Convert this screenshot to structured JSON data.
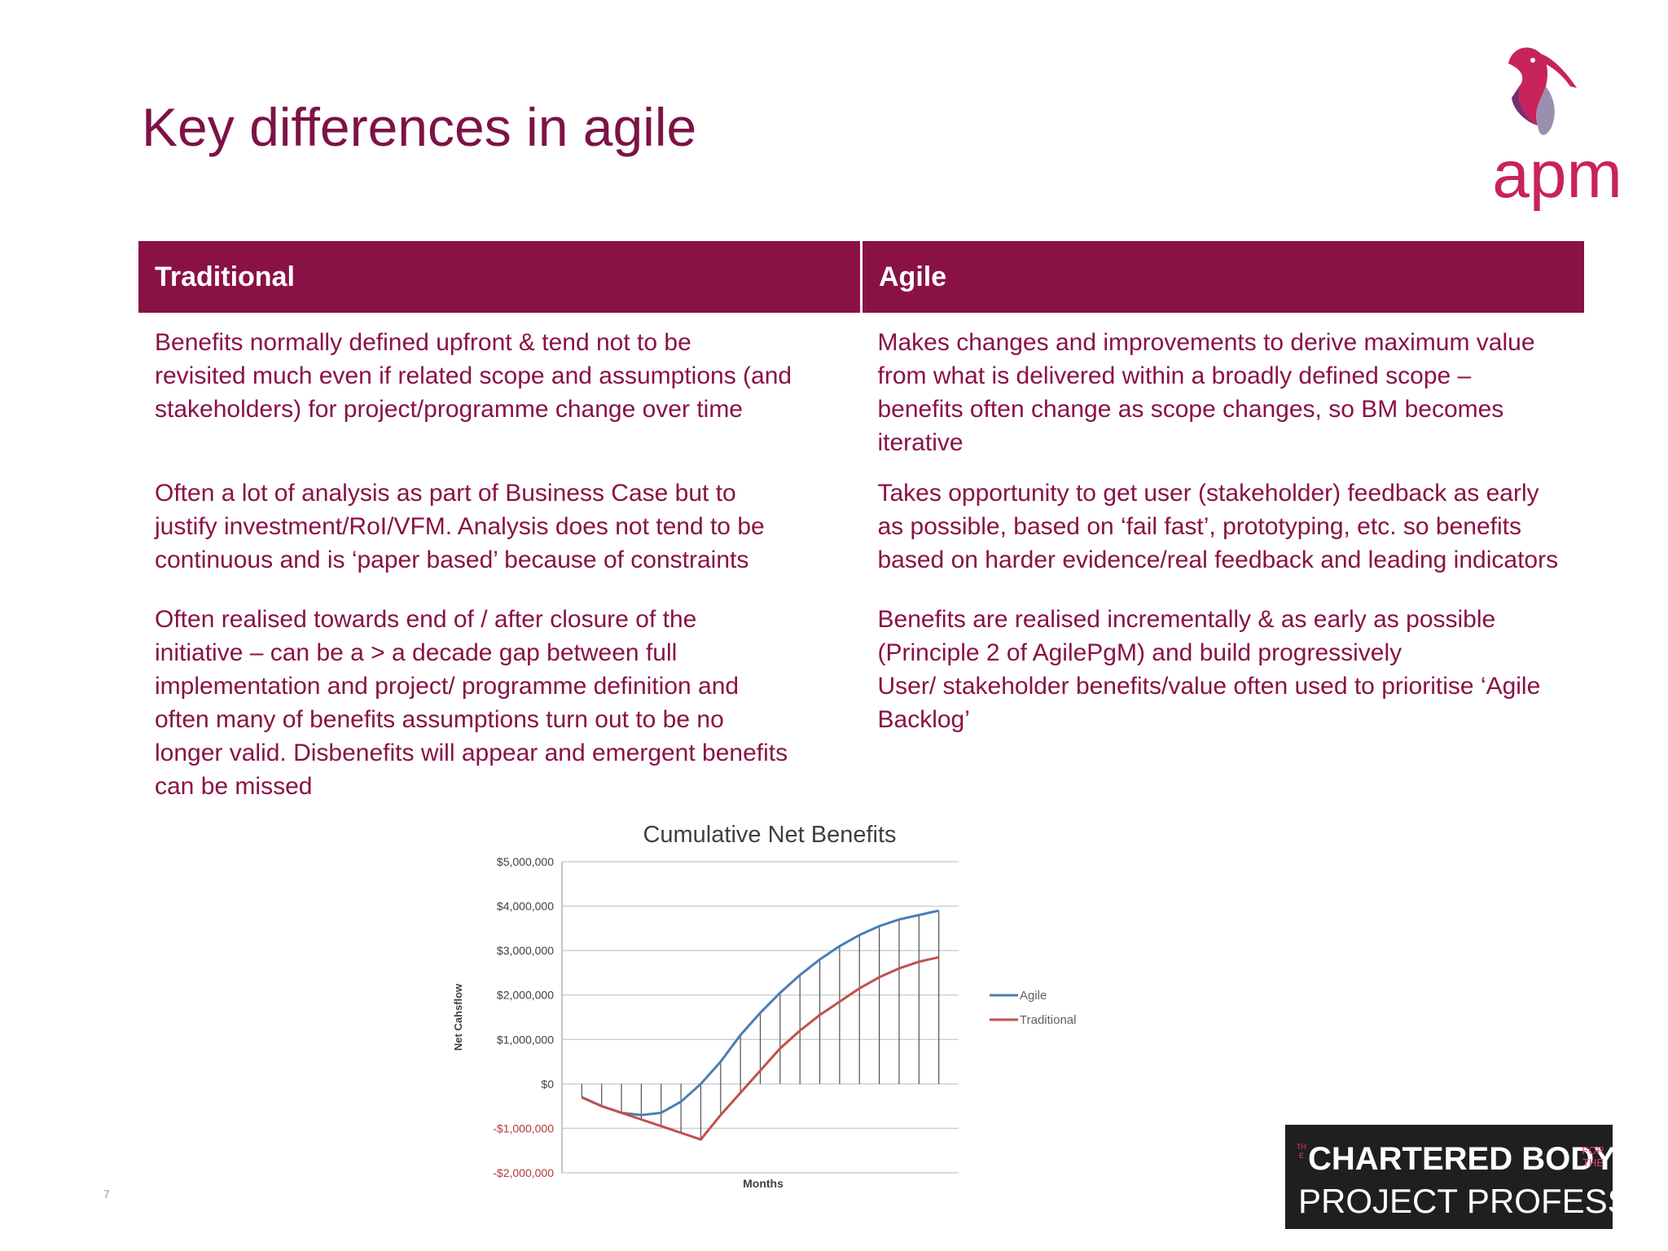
{
  "slide": {
    "title": "Key differences in agile",
    "page_number": "7"
  },
  "logo": {
    "text": "apm",
    "colors": {
      "magenta": "#c8235a",
      "purple": "#7b2d6e",
      "grey": "#9b8fb0"
    }
  },
  "table": {
    "headers": [
      "Traditional",
      "Agile"
    ],
    "header_color": "#8a1146",
    "text_color": "#8a1146",
    "rows": [
      {
        "traditional": "Benefits normally defined upfront & tend not to be\nrevisited much even if related scope and assumptions (and\nstakeholders) for project/programme change over time",
        "agile": "Makes changes and improvements to derive maximum value\nfrom what is delivered within a broadly defined scope –\nbenefits often change as scope changes, so BM becomes\niterative"
      },
      {
        "traditional": "Often a lot of analysis as part of Business Case but to\njustify investment/RoI/VFM. Analysis does not tend to be\ncontinuous and is ‘paper based’ because of constraints",
        "agile": "Takes opportunity to get user (stakeholder) feedback as early\nas possible, based on ‘fail fast’, prototyping, etc. so benefits\nbased on harder evidence/real feedback and leading indicators"
      },
      {
        "traditional": "Often realised towards end of / after closure of the\ninitiative – can be a > a decade gap between full\nimplementation and project/ programme definition and\noften many of benefits assumptions turn out to be no\nlonger valid. Disbenefits will appear and emergent benefits\ncan be missed",
        "agile": "Benefits are realised incrementally & as early as possible\n(Principle 2 of AgilePgM) and build progressively\nUser/ stakeholder benefits/value often used to prioritise ‘Agile\nBacklog’"
      }
    ]
  },
  "chart_data": {
    "type": "line",
    "title": "Cumulative Net Benefits",
    "xlabel": "Months",
    "ylabel": "Net Cahsflow",
    "ylim": [
      -2000000,
      5000000
    ],
    "yticks": [
      5000000,
      4000000,
      3000000,
      2000000,
      1000000,
      0,
      -1000000,
      -2000000
    ],
    "ytick_labels": [
      "$5,000,000",
      "$4,000,000",
      "$3,000,000",
      "$2,000,000",
      "$1,000,000",
      "$0",
      "-$1,000,000",
      "-$2,000,000"
    ],
    "x": [
      1,
      2,
      3,
      4,
      5,
      6,
      7,
      8,
      9,
      10,
      11,
      12,
      13,
      14,
      15,
      16,
      17,
      18,
      19
    ],
    "xlim": [
      0,
      20
    ],
    "series": [
      {
        "name": "Agile",
        "color": "#4a7eb5",
        "values": [
          -300000,
          -500000,
          -650000,
          -700000,
          -650000,
          -400000,
          0,
          500000,
          1100000,
          1600000,
          2050000,
          2450000,
          2800000,
          3100000,
          3350000,
          3550000,
          3700000,
          3800000,
          3900000
        ]
      },
      {
        "name": "Traditional",
        "color": "#c0504d",
        "values": [
          -300000,
          -500000,
          -650000,
          -800000,
          -950000,
          -1100000,
          -1250000,
          -700000,
          -200000,
          300000,
          800000,
          1200000,
          1550000,
          1850000,
          2150000,
          2400000,
          2600000,
          2750000,
          2850000
        ]
      }
    ],
    "legend_position": "right",
    "grid": true,
    "fill": "vertical hatch lines between series"
  },
  "badge": {
    "small_left": "THE",
    "line1": "CHARTERED BODY",
    "small_right": "FOR THE",
    "line2": "PROJECT PROFESSION",
    "background": "#1f1f1f"
  }
}
